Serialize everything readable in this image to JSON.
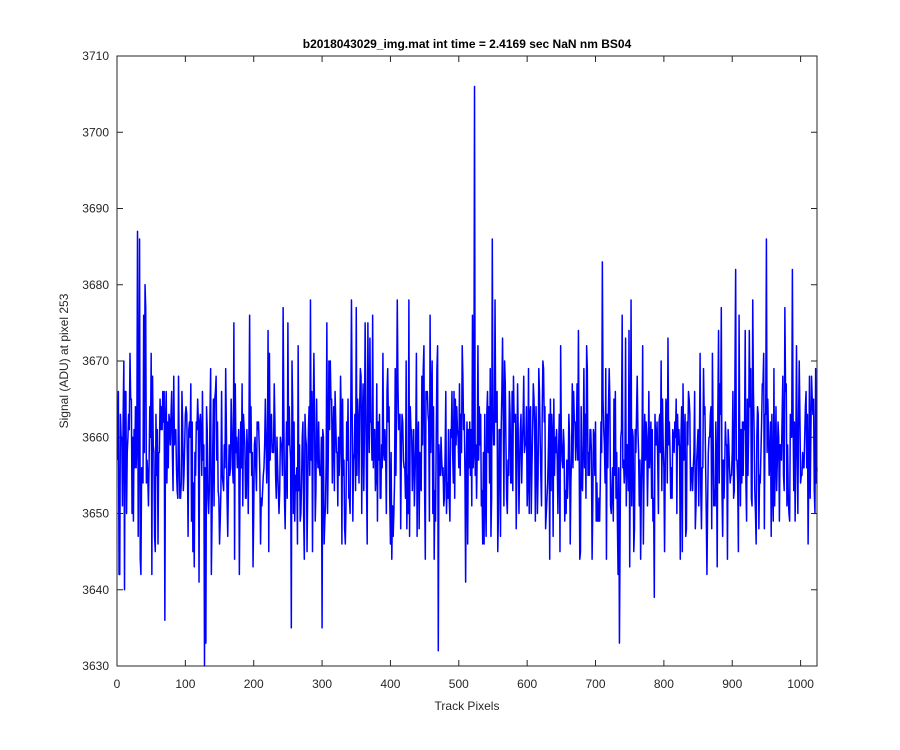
{
  "chart_data": {
    "type": "line",
    "title": "b2018043029_img.mat int time = 2.4169 sec  NaN nm BS04",
    "xlabel": "Track Pixels",
    "ylabel": "Signal (ADU) at pixel 253",
    "xlim": [
      0,
      1024
    ],
    "ylim": [
      3630,
      3710
    ],
    "xticks": [
      0,
      100,
      200,
      300,
      400,
      500,
      600,
      700,
      800,
      900,
      1000
    ],
    "yticks": [
      3630,
      3640,
      3650,
      3660,
      3670,
      3680,
      3690,
      3700,
      3710
    ],
    "grid": false,
    "legend": "none",
    "series": [
      {
        "color": "#0000ff",
        "x_start": 1,
        "x_step": 1,
        "count": 1024,
        "mean": 3658,
        "noise_std": 7,
        "seed": 20180430,
        "spikes": [
          {
            "x": 30,
            "y": 3687
          },
          {
            "x": 33,
            "y": 3686
          },
          {
            "x": 41,
            "y": 3680
          },
          {
            "x": 128,
            "y": 3630
          },
          {
            "x": 130,
            "y": 3633
          },
          {
            "x": 70,
            "y": 3636
          },
          {
            "x": 470,
            "y": 3632
          },
          {
            "x": 523,
            "y": 3706
          },
          {
            "x": 549,
            "y": 3686
          },
          {
            "x": 710,
            "y": 3683
          },
          {
            "x": 735,
            "y": 3633
          },
          {
            "x": 950,
            "y": 3686
          },
          {
            "x": 905,
            "y": 3682
          },
          {
            "x": 988,
            "y": 3682
          },
          {
            "x": 250,
            "y": 3675
          },
          {
            "x": 350,
            "y": 3677
          },
          {
            "x": 410,
            "y": 3678
          },
          {
            "x": 580,
            "y": 3668
          },
          {
            "x": 300,
            "y": 3635
          }
        ]
      }
    ]
  }
}
